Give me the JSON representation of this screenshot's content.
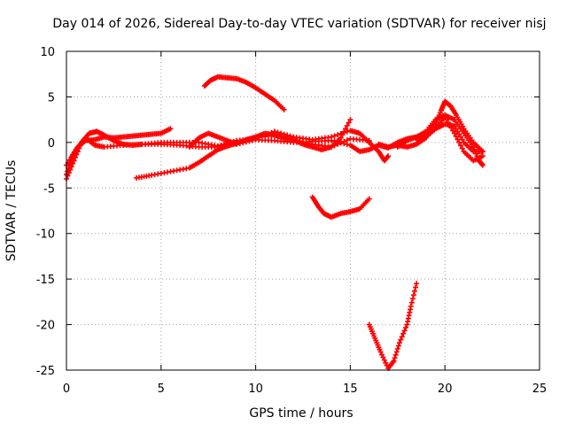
{
  "chart_data": {
    "type": "scatter",
    "title": "Day 014 of 2026, Sidereal Day-to-day VTEC variation (SDTVAR) for receiver nisj",
    "xlabel": "GPS time / hours",
    "ylabel": "SDTVAR / TECUs",
    "xlim": [
      0,
      25
    ],
    "ylim": [
      -25,
      10
    ],
    "xticks": [
      0,
      5,
      10,
      15,
      20,
      25
    ],
    "yticks": [
      10,
      5,
      0,
      -5,
      -10,
      -15,
      -20,
      -25
    ],
    "grid": true,
    "legend": "none",
    "color": "#ff0000",
    "marker": "plus",
    "series": [
      {
        "points": [
          [
            0,
            -3.5
          ],
          [
            0.3,
            -1.5
          ],
          [
            0.6,
            -0.5
          ],
          [
            1,
            0.2
          ],
          [
            1.5,
            0.3
          ],
          [
            2,
            0.6
          ],
          [
            2.5,
            0.5
          ],
          [
            3,
            0.6
          ],
          [
            3.5,
            0.7
          ],
          [
            4,
            0.8
          ],
          [
            4.5,
            0.9
          ],
          [
            5,
            1
          ],
          [
            5.5,
            1.5
          ]
        ]
      },
      {
        "points": [
          [
            0,
            -4
          ],
          [
            0.4,
            -2
          ],
          [
            0.8,
            0
          ],
          [
            1.2,
            1
          ],
          [
            1.6,
            1.2
          ],
          [
            2,
            0.8
          ],
          [
            2.5,
            0.2
          ],
          [
            3,
            -0.2
          ],
          [
            3.5,
            -0.3
          ],
          [
            4,
            -0.2
          ],
          [
            5,
            0
          ],
          [
            6,
            0
          ],
          [
            7,
            0
          ],
          [
            8,
            -0.4
          ],
          [
            9,
            0.2
          ],
          [
            10,
            0.4
          ],
          [
            11,
            1.2
          ],
          [
            12,
            0.6
          ],
          [
            13,
            0.3
          ],
          [
            14,
            0.6
          ],
          [
            15,
            1.3
          ],
          [
            15.5,
            1
          ],
          [
            16,
            0
          ],
          [
            16.5,
            -1
          ],
          [
            16.8,
            -2
          ],
          [
            17,
            -1.5
          ]
        ]
      },
      {
        "points": [
          [
            0,
            -2.5
          ],
          [
            0.5,
            -0.8
          ],
          [
            1,
            0.5
          ],
          [
            1.5,
            -0.3
          ],
          [
            2,
            -0.5
          ],
          [
            3,
            -0.3
          ],
          [
            4,
            -0.2
          ],
          [
            5,
            -0.2
          ],
          [
            6,
            -0.3
          ],
          [
            7,
            -0.5
          ],
          [
            8,
            -0.5
          ],
          [
            9,
            0
          ],
          [
            10,
            0.5
          ],
          [
            11,
            0.8
          ],
          [
            12,
            0.3
          ],
          [
            13,
            -0.2
          ],
          [
            14,
            -0.5
          ],
          [
            15,
            0.4
          ],
          [
            16,
            0.2
          ]
        ]
      },
      {
        "points": [
          [
            3.7,
            -3.9
          ],
          [
            4.5,
            -3.6
          ],
          [
            5.5,
            -3.2
          ],
          [
            6.5,
            -2.8
          ],
          [
            7,
            -2.2
          ],
          [
            7.5,
            -1.5
          ],
          [
            8,
            -0.8
          ],
          [
            8.5,
            -0.4
          ],
          [
            9,
            -0.1
          ],
          [
            9.5,
            0.3
          ],
          [
            10,
            0.6
          ],
          [
            10.5,
            1
          ],
          [
            11,
            0.8
          ],
          [
            11.5,
            0.5
          ],
          [
            12,
            0.3
          ],
          [
            12.5,
            -0.2
          ],
          [
            13,
            -0.5
          ],
          [
            13.5,
            -0.8
          ],
          [
            14,
            -0.5
          ],
          [
            14.5,
            0.5
          ],
          [
            15,
            2.5
          ]
        ]
      },
      {
        "points": [
          [
            6.5,
            -0.5
          ],
          [
            7,
            0.5
          ],
          [
            7.5,
            1
          ],
          [
            8,
            0.6
          ],
          [
            8.5,
            0.2
          ],
          [
            9,
            -0.2
          ],
          [
            10,
            0.3
          ],
          [
            11,
            0.2
          ],
          [
            12,
            0
          ],
          [
            13,
            0.1
          ],
          [
            14,
            0.2
          ],
          [
            15,
            -0.3
          ],
          [
            15.5,
            -1
          ],
          [
            16,
            -0.8
          ],
          [
            16.5,
            -0.3
          ],
          [
            17,
            -0.6
          ],
          [
            17.5,
            0
          ],
          [
            18,
            0.4
          ],
          [
            18.5,
            0.6
          ],
          [
            19,
            0.8
          ],
          [
            19.5,
            1.5
          ],
          [
            20,
            2.8
          ],
          [
            20.5,
            1
          ],
          [
            21,
            -1
          ],
          [
            21.5,
            -2
          ],
          [
            22,
            -1.5
          ]
        ]
      },
      {
        "points": [
          [
            16.5,
            -0.2
          ],
          [
            17,
            -0.5
          ],
          [
            17.5,
            -0.3
          ],
          [
            18,
            -0.5
          ],
          [
            18.5,
            -0.2
          ],
          [
            19,
            0.5
          ],
          [
            19.5,
            2
          ],
          [
            19.8,
            3.5
          ],
          [
            20,
            4.5
          ],
          [
            20.3,
            4
          ],
          [
            20.6,
            3
          ],
          [
            21,
            1.5
          ],
          [
            21.5,
            0
          ],
          [
            22,
            -1
          ]
        ]
      },
      {
        "points": [
          [
            17.5,
            -0.5
          ],
          [
            18,
            0.2
          ],
          [
            18.5,
            0.6
          ],
          [
            19,
            1.2
          ],
          [
            19.5,
            2.5
          ],
          [
            20,
            3
          ],
          [
            20.5,
            2.5
          ],
          [
            21,
            1
          ],
          [
            21.5,
            -0.5
          ],
          [
            21.8,
            -2
          ],
          [
            22,
            -2.5
          ]
        ]
      },
      {
        "points": [
          [
            18.5,
            0.3
          ],
          [
            19,
            0.6
          ],
          [
            19.5,
            1.5
          ],
          [
            20,
            2
          ],
          [
            20.5,
            1.8
          ],
          [
            21,
            0
          ],
          [
            21.5,
            -1
          ],
          [
            22,
            -1
          ]
        ]
      },
      {
        "points": [
          [
            7.3,
            6.2
          ],
          [
            7.6,
            6.8
          ],
          [
            8,
            7.2
          ],
          [
            8.5,
            7.1
          ],
          [
            9,
            7.0
          ],
          [
            9.5,
            6.6
          ],
          [
            10,
            6.0
          ],
          [
            10.5,
            5.3
          ],
          [
            11,
            4.6
          ],
          [
            11.5,
            3.6
          ]
        ]
      },
      {
        "points": [
          [
            13,
            -6
          ],
          [
            13.3,
            -7
          ],
          [
            13.6,
            -7.8
          ],
          [
            14,
            -8.2
          ],
          [
            14.5,
            -7.8
          ],
          [
            15,
            -7.6
          ],
          [
            15.5,
            -7.3
          ],
          [
            16,
            -6.2
          ]
        ]
      },
      {
        "points": [
          [
            16,
            -20
          ],
          [
            16.3,
            -21.5
          ],
          [
            16.6,
            -23
          ],
          [
            17,
            -24.8
          ],
          [
            17.3,
            -24
          ],
          [
            17.6,
            -22
          ],
          [
            18,
            -20
          ],
          [
            18.2,
            -18
          ],
          [
            18.5,
            -15.5
          ]
        ]
      }
    ]
  }
}
